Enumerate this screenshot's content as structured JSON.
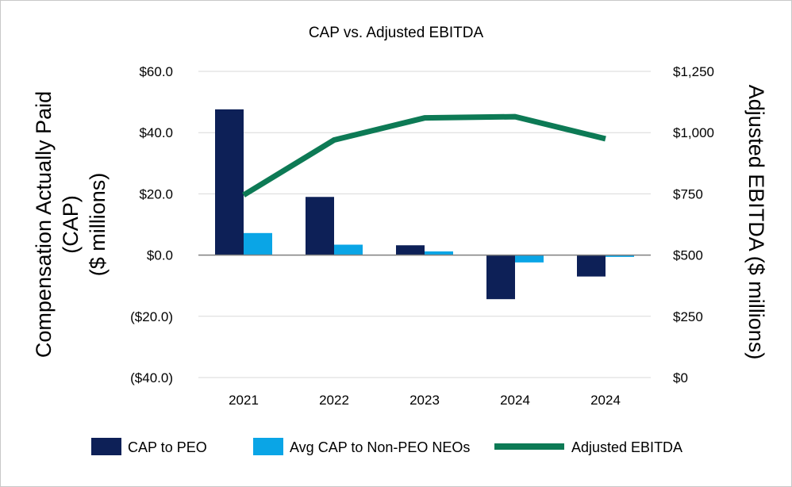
{
  "chart_data": {
    "type": "bar",
    "title": "CAP vs. Adjusted EBITDA",
    "categories": [
      "2021",
      "2022",
      "2023",
      "2024",
      "2024"
    ],
    "ylabel_left": "Compensation Actually Paid (CAP) ($ millions)",
    "ylabel_left_lines": [
      "Compensation Actually Paid",
      "(CAP)",
      "($ millions)"
    ],
    "ylabel_right": "Adjusted EBITDA ($ millions)",
    "ylim_left": [
      -40,
      60
    ],
    "ylim_right": [
      0,
      1250
    ],
    "yticks_left": [
      -40,
      -20,
      0,
      20,
      40,
      60
    ],
    "yticks_left_labels": [
      "($40.0)",
      "($20.0)",
      "$0.0",
      "$20.0",
      "$40.0",
      "$60.0"
    ],
    "yticks_right": [
      0,
      250,
      500,
      750,
      1000,
      1250
    ],
    "yticks_right_labels": [
      "$0",
      "$250",
      "$500",
      "$750",
      "$1,000",
      "$1,250"
    ],
    "grid": true,
    "legend_position": "bottom",
    "series": [
      {
        "name": "CAP to PEO",
        "type": "bar",
        "axis": "left",
        "color": "#0d2057",
        "values": [
          47.6,
          19.0,
          3.2,
          -14.4,
          -7.0
        ]
      },
      {
        "name": "Avg CAP to Non-PEO NEOs",
        "type": "bar",
        "axis": "left",
        "color": "#0aa5e6",
        "values": [
          7.2,
          3.4,
          1.2,
          -2.4,
          -0.6
        ]
      },
      {
        "name": "Adjusted EBITDA",
        "type": "line",
        "axis": "right",
        "color": "#0d7a55",
        "values": [
          745,
          970,
          1060,
          1065,
          975
        ]
      }
    ]
  }
}
